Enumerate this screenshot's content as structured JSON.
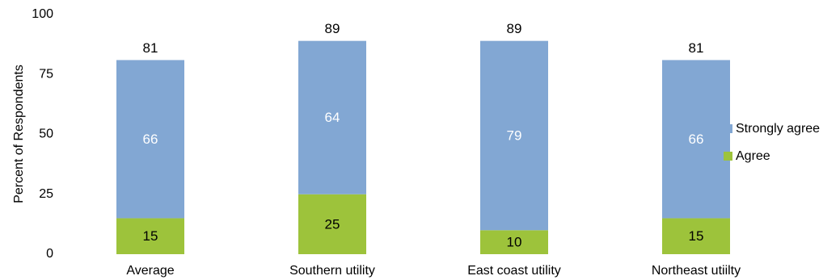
{
  "chart_data": {
    "type": "bar",
    "stacked": true,
    "categories": [
      "Average",
      "Southern utility",
      "East coast utility",
      "Northeast utiilty"
    ],
    "series": [
      {
        "name": "Agree",
        "values": [
          15,
          25,
          10,
          15
        ],
        "color": "#9DC33B",
        "label_color": "#000000"
      },
      {
        "name": "Strongly agree",
        "values": [
          66,
          64,
          79,
          66
        ],
        "color": "#82A7D3",
        "label_color": "#ffffff"
      }
    ],
    "totals": [
      81,
      89,
      89,
      81
    ],
    "ylabel": "Percent of Respondents",
    "ylim": [
      0,
      100
    ],
    "yticks": [
      0,
      25,
      50,
      75,
      100
    ],
    "grid": false,
    "legend_position": "right",
    "legend_order": [
      "Strongly agree",
      "Agree"
    ]
  }
}
